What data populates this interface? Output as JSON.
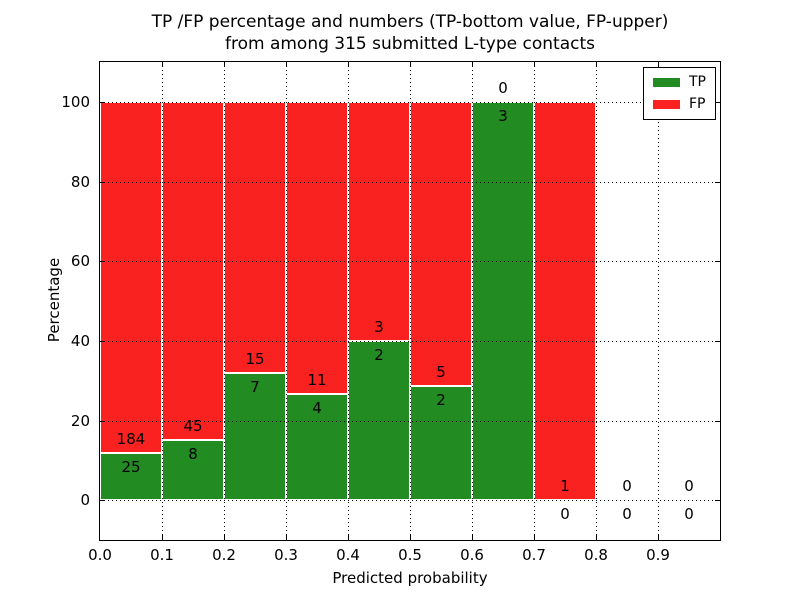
{
  "chart_data": {
    "type": "bar",
    "stacked": true,
    "title_line1": "TP /FP percentage and numbers (TP-bottom value, FP-upper)",
    "title_line2": "from among 315 submitted L-type contacts",
    "xlabel": "Predicted probability",
    "ylabel": "Percentage",
    "xlim": [
      0.0,
      1.0
    ],
    "ylim": [
      -10,
      110
    ],
    "x_tick_labels": [
      "0.0",
      "0.1",
      "0.2",
      "0.3",
      "0.4",
      "0.5",
      "0.6",
      "0.7",
      "0.8",
      "0.9"
    ],
    "y_tick_values": [
      0,
      20,
      40,
      60,
      80,
      100
    ],
    "grid": "dotted",
    "total_contacts": 315,
    "colors": {
      "tp": "#228b22",
      "fp": "#fa2221"
    },
    "legend": {
      "position": "upper right",
      "entries": [
        {
          "label": "TP",
          "color": "#228b22"
        },
        {
          "label": "FP",
          "color": "#fa2221"
        }
      ]
    },
    "bins": [
      {
        "range": [
          0.0,
          0.1
        ],
        "tp_count": 25,
        "fp_count": 184,
        "tp_pct": 11.962,
        "fp_pct": 88.038
      },
      {
        "range": [
          0.1,
          0.2
        ],
        "tp_count": 8,
        "fp_count": 45,
        "tp_pct": 15.094,
        "fp_pct": 84.906
      },
      {
        "range": [
          0.2,
          0.3
        ],
        "tp_count": 7,
        "fp_count": 15,
        "tp_pct": 31.818,
        "fp_pct": 68.182
      },
      {
        "range": [
          0.3,
          0.4
        ],
        "tp_count": 4,
        "fp_count": 11,
        "tp_pct": 26.667,
        "fp_pct": 73.333
      },
      {
        "range": [
          0.4,
          0.5
        ],
        "tp_count": 2,
        "fp_count": 3,
        "tp_pct": 40.0,
        "fp_pct": 60.0
      },
      {
        "range": [
          0.5,
          0.6
        ],
        "tp_count": 2,
        "fp_count": 5,
        "tp_pct": 28.571,
        "fp_pct": 71.429
      },
      {
        "range": [
          0.6,
          0.7
        ],
        "tp_count": 3,
        "fp_count": 0,
        "tp_pct": 100.0,
        "fp_pct": 0.0
      },
      {
        "range": [
          0.7,
          0.8
        ],
        "tp_count": 0,
        "fp_count": 1,
        "tp_pct": 0.0,
        "fp_pct": 100.0
      },
      {
        "range": [
          0.8,
          0.9
        ],
        "tp_count": 0,
        "fp_count": 0,
        "tp_pct": 0.0,
        "fp_pct": 0.0
      },
      {
        "range": [
          0.9,
          1.0
        ],
        "tp_count": 0,
        "fp_count": 0,
        "tp_pct": 0.0,
        "fp_pct": 0.0
      }
    ]
  }
}
